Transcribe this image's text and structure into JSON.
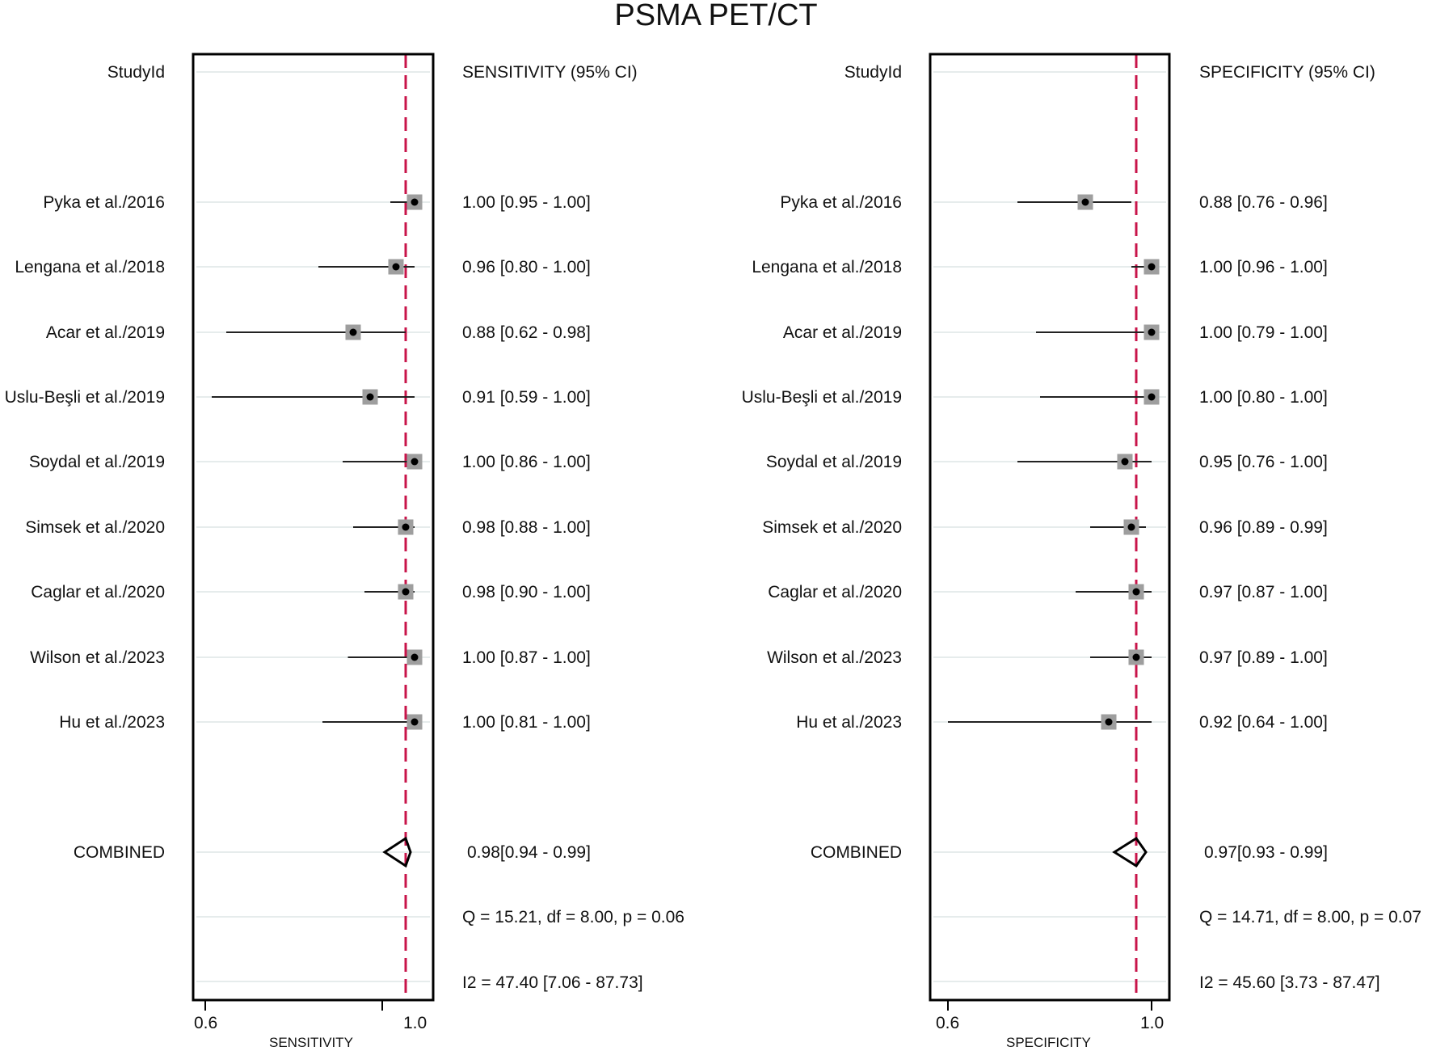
{
  "title": "PSMA PET/CT",
  "colors": {
    "reference_line": "#c8144a",
    "marker_box": "#9e9e9e",
    "point": "#000000",
    "gridline": "#e6ecec",
    "frame": "#000000"
  },
  "panels": [
    {
      "id": "sensitivity",
      "study_header": "StudyId",
      "estimate_header": "SENSITIVITY (95% CI)",
      "xlabel": "SENSITIVITY",
      "ticks": [
        "0.6",
        "1.0"
      ],
      "rows": [
        {
          "study": "Pyka et al./2016",
          "text": "1.00 [0.95 - 1.00]"
        },
        {
          "study": "Lengana et al./2018",
          "text": "0.96 [0.80 - 1.00]"
        },
        {
          "study": "Acar et al./2019",
          "text": "0.88 [0.62 - 0.98]"
        },
        {
          "study": "Uslu-Beşli et al./2019",
          "text": "0.91 [0.59 - 1.00]"
        },
        {
          "study": "Soydal et al./2019",
          "text": "1.00 [0.86 - 1.00]"
        },
        {
          "study": "Simsek et al./2020",
          "text": "0.98 [0.88 - 1.00]"
        },
        {
          "study": "Caglar et al./2020",
          "text": "0.98 [0.90 - 1.00]"
        },
        {
          "study": "Wilson et al./2023",
          "text": "1.00 [0.87 - 1.00]"
        },
        {
          "study": "Hu et al./2023",
          "text": "1.00 [0.81 - 1.00]"
        }
      ],
      "combined_label": "COMBINED",
      "combined_text": "0.98[0.94 - 0.99]",
      "q_text": "Q = 15.21, df = 8.00, p =  0.06",
      "i2_text": "I2 = 47.40 [7.06 - 87.73]"
    },
    {
      "id": "specificity",
      "study_header": "StudyId",
      "estimate_header": "SPECIFICITY (95% CI)",
      "xlabel": "SPECIFICITY",
      "ticks": [
        "0.6",
        "1.0"
      ],
      "rows": [
        {
          "study": "Pyka et al./2016",
          "text": "0.88 [0.76 - 0.96]"
        },
        {
          "study": "Lengana et al./2018",
          "text": "1.00 [0.96 - 1.00]"
        },
        {
          "study": "Acar et al./2019",
          "text": "1.00 [0.79 - 1.00]"
        },
        {
          "study": "Uslu-Beşli et al./2019",
          "text": "1.00 [0.80 - 1.00]"
        },
        {
          "study": "Soydal et al./2019",
          "text": "0.95 [0.76 - 1.00]"
        },
        {
          "study": "Simsek et al./2020",
          "text": "0.96 [0.89 - 0.99]"
        },
        {
          "study": "Caglar et al./2020",
          "text": "0.97 [0.87 - 1.00]"
        },
        {
          "study": "Wilson et al./2023",
          "text": "0.97 [0.89 - 1.00]"
        },
        {
          "study": "Hu et al./2023",
          "text": "0.92 [0.64 - 1.00]"
        }
      ],
      "combined_label": "COMBINED",
      "combined_text": "0.97[0.93 - 0.99]",
      "q_text": "Q = 14.71, df = 8.00, p =  0.07",
      "i2_text": "I2 = 45.60 [3.73 - 87.47]"
    }
  ],
  "chart_data": [
    {
      "type": "forest",
      "title": "PSMA PET/CT",
      "xlabel": "SENSITIVITY",
      "ylabel": "StudyId",
      "xticks": [
        0.6,
        1.0
      ],
      "reference_line": 0.98,
      "categories": [
        "Pyka et al./2016",
        "Lengana et al./2018",
        "Acar et al./2019",
        "Uslu-Beşli et al./2019",
        "Soydal et al./2019",
        "Simsek et al./2020",
        "Caglar et al./2020",
        "Wilson et al./2023",
        "Hu et al./2023"
      ],
      "estimate": [
        1.0,
        0.96,
        0.88,
        0.91,
        1.0,
        0.98,
        0.98,
        1.0,
        1.0
      ],
      "ci_low": [
        0.95,
        0.8,
        0.62,
        0.59,
        0.86,
        0.88,
        0.9,
        0.87,
        0.81
      ],
      "ci_high": [
        1.0,
        1.0,
        0.98,
        1.0,
        1.0,
        1.0,
        1.0,
        1.0,
        1.0
      ],
      "combined": {
        "estimate": 0.98,
        "ci_low": 0.94,
        "ci_high": 0.99
      },
      "heterogeneity": {
        "Q": 15.21,
        "df": 8.0,
        "p": 0.06,
        "I2": 47.4,
        "I2_ci": [
          7.06,
          87.73
        ]
      }
    },
    {
      "type": "forest",
      "title": "PSMA PET/CT",
      "xlabel": "SPECIFICITY",
      "ylabel": "StudyId",
      "xticks": [
        0.6,
        1.0
      ],
      "reference_line": 0.97,
      "categories": [
        "Pyka et al./2016",
        "Lengana et al./2018",
        "Acar et al./2019",
        "Uslu-Beşli et al./2019",
        "Soydal et al./2019",
        "Simsek et al./2020",
        "Caglar et al./2020",
        "Wilson et al./2023",
        "Hu et al./2023"
      ],
      "estimate": [
        0.88,
        1.0,
        1.0,
        1.0,
        0.95,
        0.96,
        0.97,
        0.97,
        0.92
      ],
      "ci_low": [
        0.76,
        0.96,
        0.79,
        0.8,
        0.76,
        0.89,
        0.87,
        0.89,
        0.64
      ],
      "ci_high": [
        0.96,
        1.0,
        1.0,
        1.0,
        1.0,
        0.99,
        1.0,
        1.0,
        1.0
      ],
      "combined": {
        "estimate": 0.97,
        "ci_low": 0.93,
        "ci_high": 0.99
      },
      "heterogeneity": {
        "Q": 14.71,
        "df": 8.0,
        "p": 0.07,
        "I2": 45.6,
        "I2_ci": [
          3.73,
          87.47
        ]
      }
    }
  ]
}
